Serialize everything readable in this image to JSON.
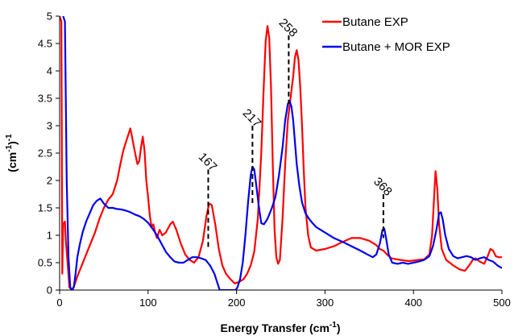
{
  "chart_data": {
    "type": "line",
    "title": "",
    "xlabel": "Energy Transfer (cm",
    "xlabel_sup": "-1",
    "xlabel_end": ")",
    "ylabel": "(cm",
    "ylabel_sup1": "-1",
    "ylabel_mid": ")",
    "ylabel_sup2": "-1",
    "xlim": [
      0,
      500
    ],
    "ylim": [
      0,
      5
    ],
    "x_ticks": [
      "0",
      "100",
      "200",
      "300",
      "400",
      "500"
    ],
    "y_ticks": [
      "0",
      "0.5",
      "1",
      "1.5",
      "2",
      "2.5",
      "3",
      "3.5",
      "4",
      "4.5",
      "5"
    ],
    "grid": false,
    "legend_position": "top-right",
    "annotations": [
      {
        "label": "167",
        "x": 168,
        "y_top": 2.2,
        "y_bottom": 0.75
      },
      {
        "label": "217",
        "x": 218,
        "y_top": 3.0,
        "y_bottom": 1.55
      },
      {
        "label": "258",
        "x": 259,
        "y_top": 4.65,
        "y_bottom": 3.4
      },
      {
        "label": "368",
        "x": 366,
        "y_top": 1.75,
        "y_bottom": 0.95
      }
    ],
    "series": [
      {
        "name": "Butane EXP",
        "color": "#ff0000",
        "points": [
          [
            0,
            5
          ],
          [
            2,
            4.9
          ],
          [
            3,
            0.3
          ],
          [
            4,
            1.2
          ],
          [
            6,
            1.25
          ],
          [
            7,
            0.9
          ],
          [
            9,
            0.5
          ],
          [
            11,
            0.05
          ],
          [
            14,
            0.0
          ],
          [
            17,
            0.1
          ],
          [
            20,
            0.25
          ],
          [
            25,
            0.45
          ],
          [
            30,
            0.65
          ],
          [
            35,
            0.85
          ],
          [
            40,
            1.05
          ],
          [
            45,
            1.3
          ],
          [
            50,
            1.5
          ],
          [
            55,
            1.65
          ],
          [
            60,
            1.75
          ],
          [
            65,
            2.0
          ],
          [
            68,
            2.25
          ],
          [
            72,
            2.55
          ],
          [
            76,
            2.75
          ],
          [
            80,
            2.95
          ],
          [
            83,
            2.7
          ],
          [
            86,
            2.45
          ],
          [
            88,
            2.3
          ],
          [
            90,
            2.35
          ],
          [
            92,
            2.6
          ],
          [
            94,
            2.8
          ],
          [
            96,
            2.55
          ],
          [
            98,
            2.0
          ],
          [
            100,
            1.7
          ],
          [
            102,
            1.35
          ],
          [
            104,
            1.15
          ],
          [
            106,
            1.2
          ],
          [
            108,
            1.05
          ],
          [
            110,
            0.95
          ],
          [
            113,
            1.1
          ],
          [
            116,
            1.0
          ],
          [
            120,
            1.05
          ],
          [
            125,
            1.2
          ],
          [
            128,
            1.25
          ],
          [
            132,
            1.1
          ],
          [
            137,
            0.85
          ],
          [
            142,
            0.65
          ],
          [
            147,
            0.55
          ],
          [
            152,
            0.5
          ],
          [
            157,
            0.6
          ],
          [
            162,
            0.9
          ],
          [
            166,
            1.35
          ],
          [
            169,
            1.58
          ],
          [
            172,
            1.55
          ],
          [
            176,
            1.2
          ],
          [
            180,
            0.75
          ],
          [
            184,
            0.45
          ],
          [
            188,
            0.3
          ],
          [
            193,
            0.2
          ],
          [
            198,
            0.12
          ],
          [
            203,
            0.15
          ],
          [
            208,
            0.2
          ],
          [
            212,
            0.3
          ],
          [
            216,
            0.45
          ],
          [
            220,
            0.7
          ],
          [
            224,
            1.3
          ],
          [
            228,
            2.5
          ],
          [
            231,
            3.8
          ],
          [
            233,
            4.55
          ],
          [
            235,
            4.82
          ],
          [
            237,
            4.6
          ],
          [
            239,
            3.7
          ],
          [
            241,
            2.3
          ],
          [
            243,
            1.1
          ],
          [
            245,
            0.6
          ],
          [
            247,
            0.48
          ],
          [
            249,
            0.55
          ],
          [
            252,
            1.3
          ],
          [
            255,
            2.3
          ],
          [
            258,
            3.1
          ],
          [
            261,
            3.5
          ],
          [
            264,
            3.9
          ],
          [
            266,
            4.25
          ],
          [
            268,
            4.38
          ],
          [
            270,
            4.2
          ],
          [
            272,
            3.7
          ],
          [
            274,
            3.0
          ],
          [
            276,
            2.2
          ],
          [
            278,
            1.5
          ],
          [
            281,
            1.0
          ],
          [
            284,
            0.78
          ],
          [
            290,
            0.72
          ],
          [
            300,
            0.75
          ],
          [
            310,
            0.8
          ],
          [
            320,
            0.88
          ],
          [
            330,
            0.95
          ],
          [
            340,
            0.95
          ],
          [
            350,
            0.9
          ],
          [
            358,
            0.82
          ],
          [
            362,
            0.75
          ],
          [
            366,
            0.72
          ],
          [
            370,
            0.65
          ],
          [
            375,
            0.58
          ],
          [
            385,
            0.55
          ],
          [
            395,
            0.53
          ],
          [
            405,
            0.55
          ],
          [
            412,
            0.56
          ],
          [
            418,
            0.65
          ],
          [
            421,
            1.0
          ],
          [
            423,
            1.6
          ],
          [
            425,
            2.17
          ],
          [
            427,
            1.85
          ],
          [
            429,
            1.2
          ],
          [
            432,
            0.75
          ],
          [
            437,
            0.55
          ],
          [
            445,
            0.45
          ],
          [
            452,
            0.38
          ],
          [
            458,
            0.35
          ],
          [
            463,
            0.45
          ],
          [
            467,
            0.55
          ],
          [
            470,
            0.58
          ],
          [
            475,
            0.52
          ],
          [
            480,
            0.48
          ],
          [
            484,
            0.62
          ],
          [
            487,
            0.75
          ],
          [
            490,
            0.72
          ],
          [
            493,
            0.62
          ],
          [
            496,
            0.6
          ],
          [
            500,
            0.6
          ]
        ]
      },
      {
        "name": "Butane + MOR EXP",
        "color": "#0000ee",
        "points": [
          [
            4,
            5
          ],
          [
            6,
            4.9
          ],
          [
            8,
            2.0
          ],
          [
            10,
            0.6
          ],
          [
            12,
            0.05
          ],
          [
            14,
            0.0
          ],
          [
            16,
            0.05
          ],
          [
            18,
            0.3
          ],
          [
            20,
            0.6
          ],
          [
            23,
            0.85
          ],
          [
            26,
            1.05
          ],
          [
            30,
            1.25
          ],
          [
            34,
            1.4
          ],
          [
            38,
            1.55
          ],
          [
            42,
            1.63
          ],
          [
            46,
            1.67
          ],
          [
            50,
            1.58
          ],
          [
            55,
            1.5
          ],
          [
            60,
            1.5
          ],
          [
            65,
            1.48
          ],
          [
            70,
            1.47
          ],
          [
            75,
            1.45
          ],
          [
            80,
            1.42
          ],
          [
            85,
            1.38
          ],
          [
            90,
            1.35
          ],
          [
            95,
            1.3
          ],
          [
            100,
            1.23
          ],
          [
            105,
            1.12
          ],
          [
            110,
            1.0
          ],
          [
            115,
            0.85
          ],
          [
            120,
            0.7
          ],
          [
            125,
            0.6
          ],
          [
            130,
            0.52
          ],
          [
            135,
            0.5
          ],
          [
            140,
            0.5
          ],
          [
            145,
            0.55
          ],
          [
            150,
            0.6
          ],
          [
            155,
            0.6
          ],
          [
            160,
            0.58
          ],
          [
            165,
            0.55
          ],
          [
            170,
            0.45
          ],
          [
            175,
            0.3
          ],
          [
            178,
            0.15
          ],
          [
            181,
            0.0
          ],
          [
            183,
            0.0
          ],
          [
            199,
            0.0
          ],
          [
            201,
            0.05
          ],
          [
            204,
            0.2
          ],
          [
            207,
            0.5
          ],
          [
            210,
            1.0
          ],
          [
            213,
            1.6
          ],
          [
            216,
            2.1
          ],
          [
            218,
            2.25
          ],
          [
            220,
            2.2
          ],
          [
            222,
            1.95
          ],
          [
            225,
            1.55
          ],
          [
            228,
            1.22
          ],
          [
            231,
            1.2
          ],
          [
            235,
            1.3
          ],
          [
            240,
            1.5
          ],
          [
            244,
            1.7
          ],
          [
            248,
            2.1
          ],
          [
            252,
            2.6
          ],
          [
            255,
            3.1
          ],
          [
            258,
            3.4
          ],
          [
            260,
            3.45
          ],
          [
            262,
            3.35
          ],
          [
            264,
            3.1
          ],
          [
            266,
            2.7
          ],
          [
            268,
            2.3
          ],
          [
            271,
            1.9
          ],
          [
            274,
            1.6
          ],
          [
            278,
            1.4
          ],
          [
            282,
            1.3
          ],
          [
            286,
            1.22
          ],
          [
            290,
            1.15
          ],
          [
            295,
            1.1
          ],
          [
            300,
            1.05
          ],
          [
            310,
            0.95
          ],
          [
            320,
            0.88
          ],
          [
            330,
            0.8
          ],
          [
            340,
            0.72
          ],
          [
            348,
            0.65
          ],
          [
            354,
            0.6
          ],
          [
            358,
            0.65
          ],
          [
            362,
            0.85
          ],
          [
            365,
            1.1
          ],
          [
            367,
            1.12
          ],
          [
            369,
            0.95
          ],
          [
            372,
            0.65
          ],
          [
            376,
            0.5
          ],
          [
            382,
            0.48
          ],
          [
            388,
            0.5
          ],
          [
            394,
            0.48
          ],
          [
            400,
            0.5
          ],
          [
            406,
            0.52
          ],
          [
            412,
            0.55
          ],
          [
            418,
            0.62
          ],
          [
            422,
            0.8
          ],
          [
            426,
            1.1
          ],
          [
            429,
            1.4
          ],
          [
            431,
            1.42
          ],
          [
            433,
            1.3
          ],
          [
            436,
            1.0
          ],
          [
            440,
            0.75
          ],
          [
            445,
            0.62
          ],
          [
            450,
            0.58
          ],
          [
            455,
            0.6
          ],
          [
            460,
            0.62
          ],
          [
            465,
            0.6
          ],
          [
            470,
            0.55
          ],
          [
            475,
            0.58
          ],
          [
            480,
            0.6
          ],
          [
            485,
            0.55
          ],
          [
            490,
            0.52
          ],
          [
            495,
            0.45
          ],
          [
            500,
            0.4
          ]
        ]
      }
    ]
  }
}
